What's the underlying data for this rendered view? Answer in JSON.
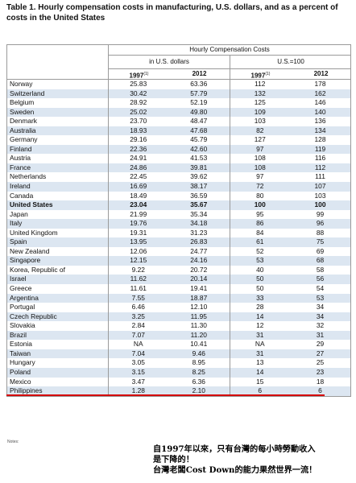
{
  "title": "Table 1. Hourly compensation costs in manufacturing, U.S. dollars, and as a percent of costs in the United States",
  "header": {
    "group": "Hourly Compensation Costs",
    "usd": "in U.S. dollars",
    "pct": "U.S.=100",
    "y1": "1997",
    "y1_sup": "(1)",
    "y2": "2012"
  },
  "rows": [
    {
      "country": "Norway",
      "usd1997": "25.83",
      "usd2012": "63.36",
      "pct1997": "112",
      "pct2012": "178"
    },
    {
      "country": "Switzerland",
      "usd1997": "30.42",
      "usd2012": "57.79",
      "pct1997": "132",
      "pct2012": "162"
    },
    {
      "country": "Belgium",
      "usd1997": "28.92",
      "usd2012": "52.19",
      "pct1997": "125",
      "pct2012": "146"
    },
    {
      "country": "Sweden",
      "usd1997": "25.02",
      "usd2012": "49.80",
      "pct1997": "109",
      "pct2012": "140"
    },
    {
      "country": "Denmark",
      "usd1997": "23.70",
      "usd2012": "48.47",
      "pct1997": "103",
      "pct2012": "136"
    },
    {
      "country": "Australia",
      "usd1997": "18.93",
      "usd2012": "47.68",
      "pct1997": "82",
      "pct2012": "134"
    },
    {
      "country": "Germany",
      "usd1997": "29.16",
      "usd2012": "45.79",
      "pct1997": "127",
      "pct2012": "128"
    },
    {
      "country": "Finland",
      "usd1997": "22.36",
      "usd2012": "42.60",
      "pct1997": "97",
      "pct2012": "119"
    },
    {
      "country": "Austria",
      "usd1997": "24.91",
      "usd2012": "41.53",
      "pct1997": "108",
      "pct2012": "116"
    },
    {
      "country": "France",
      "usd1997": "24.86",
      "usd2012": "39.81",
      "pct1997": "108",
      "pct2012": "112"
    },
    {
      "country": "Netherlands",
      "usd1997": "22.45",
      "usd2012": "39.62",
      "pct1997": "97",
      "pct2012": "111"
    },
    {
      "country": "Ireland",
      "usd1997": "16.69",
      "usd2012": "38.17",
      "pct1997": "72",
      "pct2012": "107"
    },
    {
      "country": "Canada",
      "usd1997": "18.49",
      "usd2012": "36.59",
      "pct1997": "80",
      "pct2012": "103"
    },
    {
      "country": "United States",
      "usd1997": "23.04",
      "usd2012": "35.67",
      "pct1997": "100",
      "pct2012": "100"
    },
    {
      "country": "Japan",
      "usd1997": "21.99",
      "usd2012": "35.34",
      "pct1997": "95",
      "pct2012": "99"
    },
    {
      "country": "Italy",
      "usd1997": "19.76",
      "usd2012": "34.18",
      "pct1997": "86",
      "pct2012": "96"
    },
    {
      "country": "United Kingdom",
      "usd1997": "19.31",
      "usd2012": "31.23",
      "pct1997": "84",
      "pct2012": "88"
    },
    {
      "country": "Spain",
      "usd1997": "13.95",
      "usd2012": "26.83",
      "pct1997": "61",
      "pct2012": "75"
    },
    {
      "country": "New Zealand",
      "usd1997": "12.06",
      "usd2012": "24.77",
      "pct1997": "52",
      "pct2012": "69"
    },
    {
      "country": "Singapore",
      "usd1997": "12.15",
      "usd2012": "24.16",
      "pct1997": "53",
      "pct2012": "68"
    },
    {
      "country": "Korea, Republic of",
      "usd1997": "9.22",
      "usd2012": "20.72",
      "pct1997": "40",
      "pct2012": "58"
    },
    {
      "country": "Israel",
      "usd1997": "11.62",
      "usd2012": "20.14",
      "pct1997": "50",
      "pct2012": "56"
    },
    {
      "country": "Greece",
      "usd1997": "11.61",
      "usd2012": "19.41",
      "pct1997": "50",
      "pct2012": "54"
    },
    {
      "country": "Argentina",
      "usd1997": "7.55",
      "usd2012": "18.87",
      "pct1997": "33",
      "pct2012": "53"
    },
    {
      "country": "Portugal",
      "usd1997": "6.46",
      "usd2012": "12.10",
      "pct1997": "28",
      "pct2012": "34"
    },
    {
      "country": "Czech Republic",
      "usd1997": "3.25",
      "usd2012": "11.95",
      "pct1997": "14",
      "pct2012": "34"
    },
    {
      "country": "Slovakia",
      "usd1997": "2.84",
      "usd2012": "11.30",
      "pct1997": "12",
      "pct2012": "32"
    },
    {
      "country": "Brazil",
      "usd1997": "7.07",
      "usd2012": "11.20",
      "pct1997": "31",
      "pct2012": "31"
    },
    {
      "country": "Estonia",
      "usd1997": "NA",
      "usd2012": "10.41",
      "pct1997": "NA",
      "pct2012": "29"
    },
    {
      "country": "Taiwan",
      "usd1997": "7.04",
      "usd2012": "9.46",
      "pct1997": "31",
      "pct2012": "27"
    },
    {
      "country": "Hungary",
      "usd1997": "3.05",
      "usd2012": "8.95",
      "pct1997": "13",
      "pct2012": "25"
    },
    {
      "country": "Poland",
      "usd1997": "3.15",
      "usd2012": "8.25",
      "pct1997": "14",
      "pct2012": "23"
    },
    {
      "country": "Mexico",
      "usd1997": "3.47",
      "usd2012": "6.36",
      "pct1997": "15",
      "pct2012": "18"
    },
    {
      "country": "Philippines",
      "usd1997": "1.28",
      "usd2012": "2.10",
      "pct1997": "6",
      "pct2012": "6"
    }
  ],
  "bold_country": "United States",
  "footnote": "Notes:",
  "annotation": [
    "自1997年以來，只有台灣的每小時勞動收入",
    "是下降的！",
    "台灣老闆Cost Down的能力果然世界一流！"
  ],
  "colors": {
    "stripe": "#dce6f1",
    "grid": "#9a9a9a",
    "underline": "#d40000"
  }
}
